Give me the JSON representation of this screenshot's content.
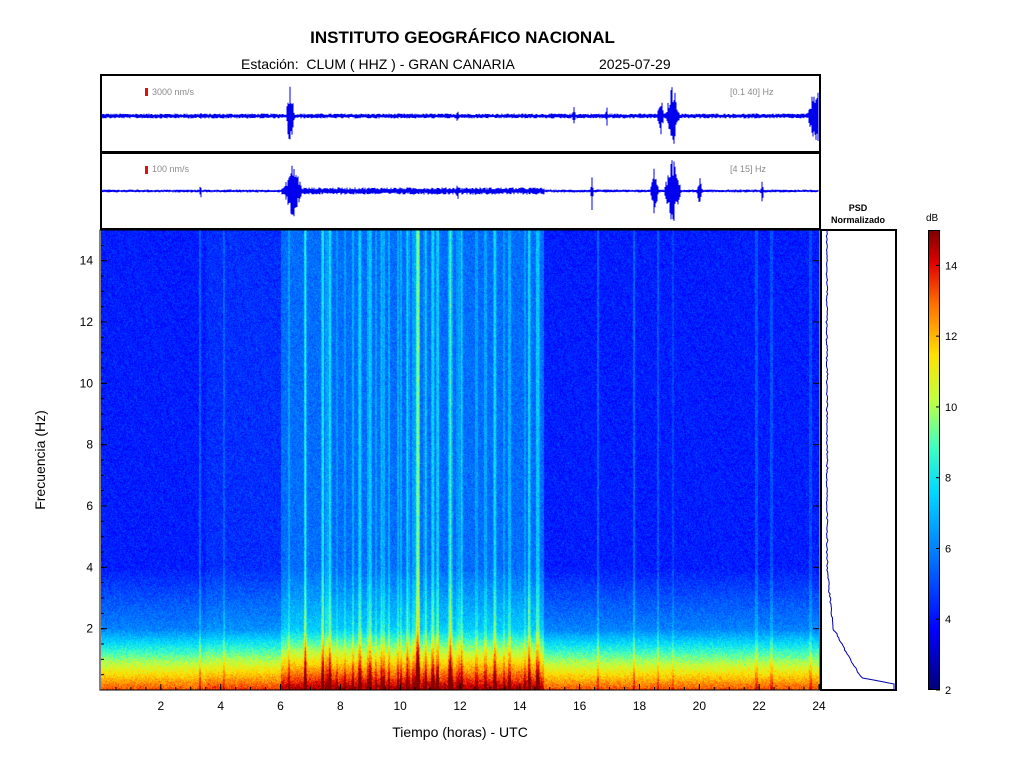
{
  "header": {
    "title": "INSTITUTO GEOGRÁFICO NACIONAL",
    "station": "Estación:  CLUM ( HHZ ) - GRAN CANARIA",
    "date": "2025-07-29"
  },
  "traces": {
    "broadband": {
      "scale": "3000 nm/s",
      "band": "[0.1 40] Hz"
    },
    "filtered": {
      "scale": "100 nm/s",
      "band": "[4 15] Hz"
    }
  },
  "psd": {
    "title_line1": "PSD",
    "title_line2": "Normalizado"
  },
  "colorbar": {
    "unit": "dB",
    "range": [
      2,
      15
    ],
    "ticks": [
      2,
      4,
      6,
      8,
      10,
      12,
      14
    ]
  },
  "chart_data": {
    "type": "heatmap",
    "title": "INSTITUTO GEOGRÁFICO NACIONAL",
    "xlabel": "Tiempo (horas) - UTC",
    "ylabel": "Frecuencia  (Hz)",
    "xlim": [
      0,
      24
    ],
    "ylim": [
      0,
      15
    ],
    "xticks": [
      2,
      4,
      6,
      8,
      10,
      12,
      14,
      16,
      18,
      20,
      22,
      24
    ],
    "yticks": [
      2,
      4,
      6,
      8,
      10,
      12,
      14
    ],
    "activity_hours": [
      6.0,
      14.8
    ],
    "low_frequency_band_hz": [
      0,
      2
    ],
    "colors": {
      "trace": "#0000ee",
      "scale_marker": "#e01010"
    }
  }
}
